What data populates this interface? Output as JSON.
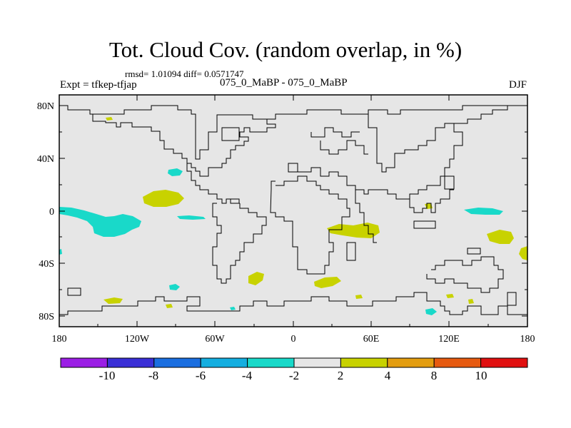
{
  "title": "Tot. Cloud Cov. (random overlap, in %)",
  "stats": "rmsd= 1.01094 diff= 0.0571747",
  "experiment": "Expt = tfkep-tfjap",
  "comparison": "075_0_MaBP - 075_0_MaBP",
  "season": "DJF",
  "colors": {
    "background": "#e6e6e6",
    "coast": "#000000",
    "negative_small": "#19d9c9",
    "positive_small": "#c8d200"
  },
  "lat_labels": [
    "80N",
    "40N",
    "0",
    "40S",
    "80S"
  ],
  "lon_labels": [
    "180",
    "120W",
    "60W",
    "0",
    "60E",
    "120E",
    "180"
  ],
  "colorbar": {
    "colors": [
      "#9b1ee5",
      "#3a2fd6",
      "#1a6ee0",
      "#14aee0",
      "#19d9c9",
      "#e6e6e6",
      "#c8d200",
      "#e39d10",
      "#e65a10",
      "#e01010"
    ],
    "labels": [
      "-10",
      "-8",
      "-6",
      "-4",
      "-2",
      "2",
      "4",
      "8",
      "10"
    ]
  }
}
